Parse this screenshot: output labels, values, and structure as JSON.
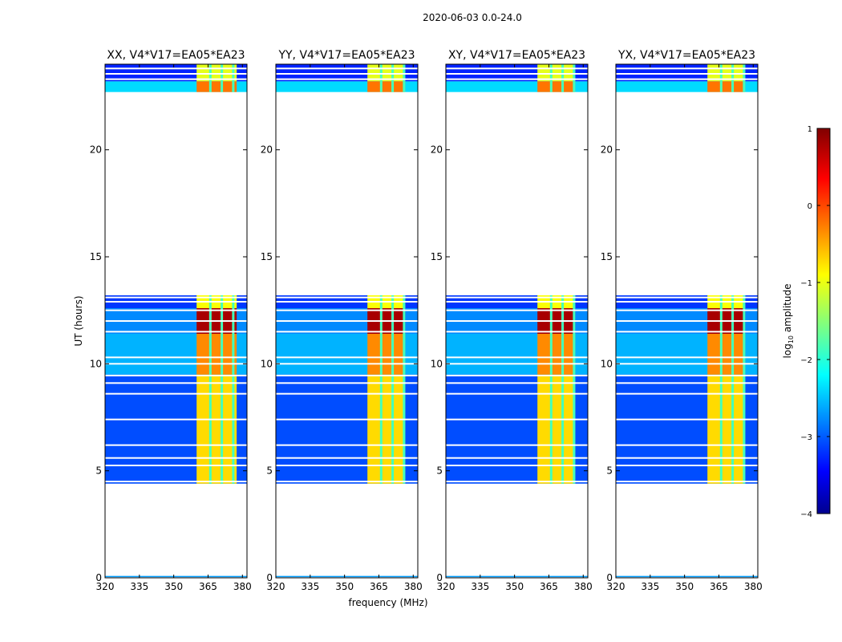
{
  "figure": {
    "suptitle": "2020-06-03 0.0-24.0",
    "ylabel": "UT (hours)",
    "xlabel": "frequency (MHz)"
  },
  "colorbar": {
    "label": "log",
    "label_sub": "10",
    "label_rest": " amplitude",
    "range": [
      -4,
      1
    ],
    "ticks": [
      {
        "value": 1,
        "label": "1"
      },
      {
        "value": 0,
        "label": "0"
      },
      {
        "value": -1,
        "label": "−1"
      },
      {
        "value": -2,
        "label": "−2"
      },
      {
        "value": -3,
        "label": "−3"
      },
      {
        "value": -4,
        "label": "−4"
      }
    ]
  },
  "chart_data": {
    "type": "heatmap",
    "colormap": "jet",
    "xlim": [
      320,
      382
    ],
    "ylim": [
      0,
      24
    ],
    "x_ticks": [
      320,
      335,
      350,
      365,
      380
    ],
    "y_ticks": [
      0,
      5,
      10,
      15,
      20
    ],
    "panels": [
      {
        "title": "XX, V4*V17=EA05*EA23",
        "high_band": [
          360,
          377.5
        ],
        "peak_band": [
          360,
          377.5
        ]
      },
      {
        "title": "YY, V4*V17=EA05*EA23",
        "high_band": [
          360,
          376.5
        ],
        "peak_band": [
          360,
          376.5
        ]
      },
      {
        "title": "XY, V4*V17=EA05*EA23",
        "high_band": [
          360,
          376.5
        ],
        "peak_band": [
          360,
          376.5
        ]
      },
      {
        "title": "YX, V4*V17=EA05*EA23",
        "high_band": [
          360,
          376.5
        ],
        "peak_band": [
          360,
          376.5
        ]
      }
    ],
    "data_blocks_hours": [
      {
        "start": 4.4,
        "end": 9.5,
        "background_log_amp": -3.0,
        "band_log_amp": -0.7
      },
      {
        "start": 9.5,
        "end": 11.4,
        "background_log_amp": -2.5,
        "band_log_amp": -0.3
      },
      {
        "start": 11.4,
        "end": 12.6,
        "background_log_amp": -2.7,
        "band_log_amp": 0.8
      },
      {
        "start": 12.6,
        "end": 13.2,
        "background_log_amp": -3.1,
        "band_log_amp": -0.9
      },
      {
        "start": 22.7,
        "end": 23.2,
        "background_log_amp": -2.3,
        "band_log_amp": -0.2
      },
      {
        "start": 23.2,
        "end": 24.0,
        "background_log_amp": -3.2,
        "band_log_amp": -1.0
      }
    ],
    "channel_gaps_mhz": [
      366,
      371,
      376
    ],
    "flagged_rows_hours": [
      4.5,
      5.25,
      5.6,
      6.2,
      7.4,
      8.6,
      9.1,
      9.45,
      10.0,
      10.3,
      11.5,
      12.0,
      12.5,
      12.9,
      13.1,
      23.3,
      23.55,
      23.8
    ]
  }
}
